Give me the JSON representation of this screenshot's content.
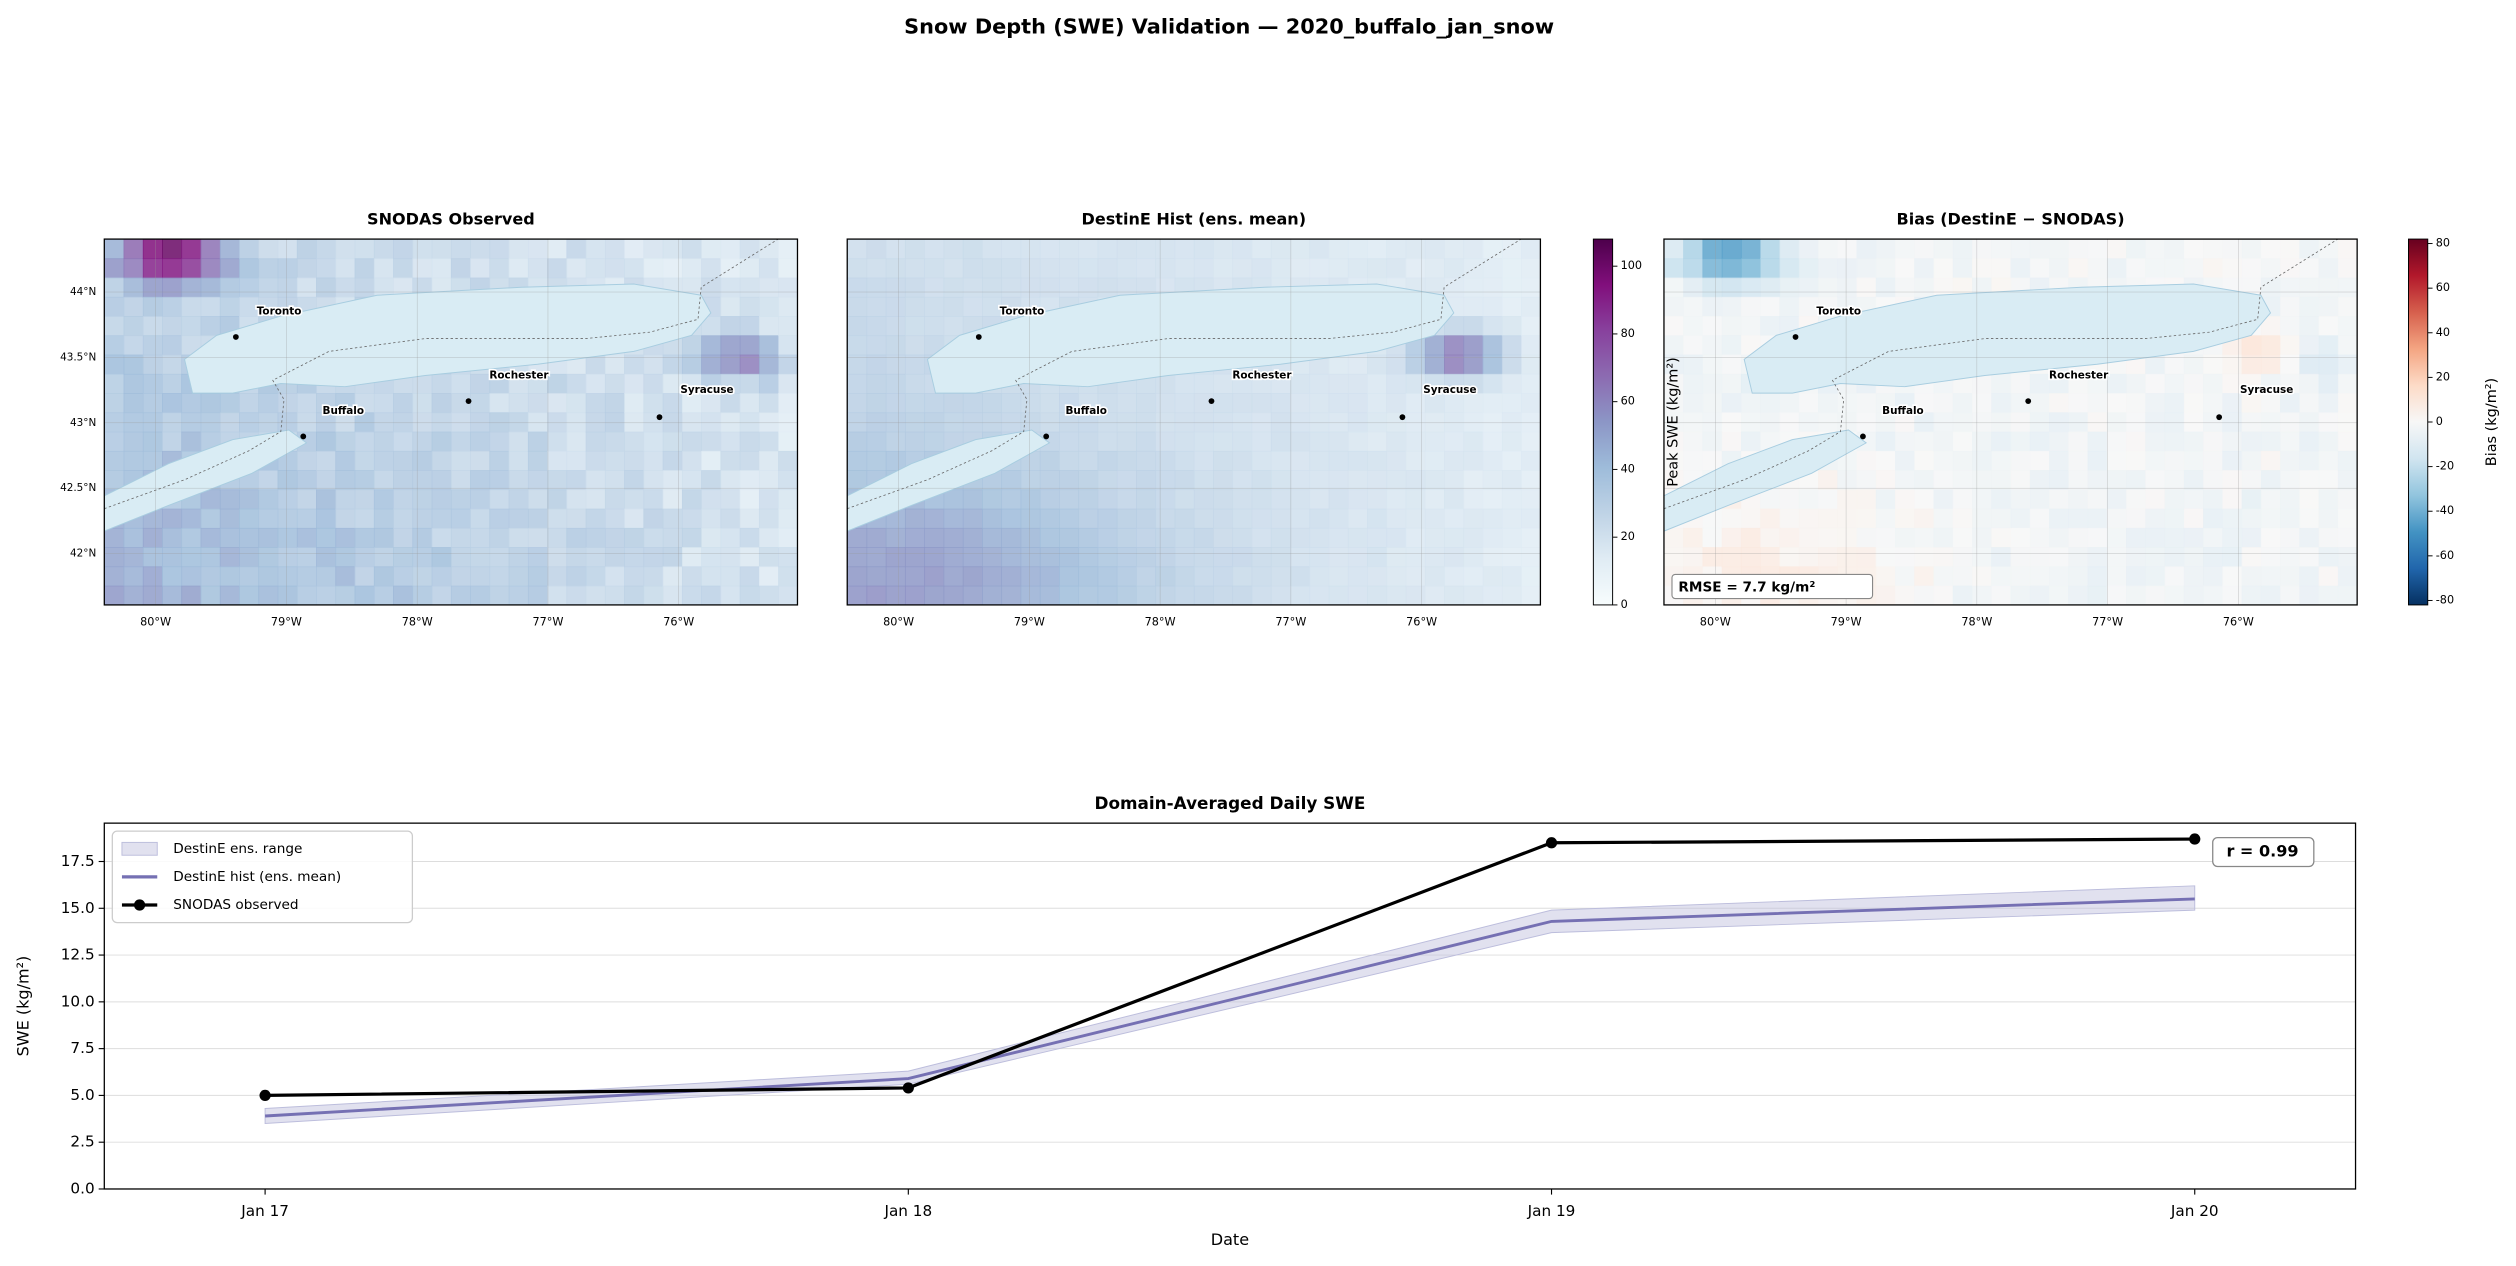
{
  "title": "Snow Depth (SWE) Validation — 2020_buffalo_jan_snow",
  "maps": [
    {
      "title": "SNODAS Observed",
      "cities": [
        "Toronto",
        "Rochester",
        "Buffalo",
        "Syracuse"
      ]
    },
    {
      "title": "DestinE Hist (ens. mean)",
      "cities": [
        "Toronto",
        "Rochester",
        "Buffalo",
        "Syracuse"
      ]
    },
    {
      "title": "Bias (DestinE − SNODAS)",
      "cities": [
        "Toronto",
        "Rochester",
        "Buffalo",
        "Syracuse"
      ],
      "annotation": "RMSE = 7.7 kg/m²"
    }
  ],
  "map_axes": {
    "lon_ticks": [
      "80°W",
      "79°W",
      "78°W",
      "77°W",
      "76°W"
    ],
    "lat_ticks": [
      "44°N",
      "43.5°N",
      "43°N",
      "42.5°N",
      "42°N"
    ]
  },
  "colorbars": [
    {
      "label": "Peak SWE (kg/m²)",
      "lim": [
        0,
        108
      ],
      "ticks": [
        0,
        20,
        40,
        60,
        80,
        100
      ]
    },
    {
      "label": "Bias (kg/m²)",
      "lim": [
        -82,
        82
      ],
      "ticks": [
        -80,
        -60,
        -40,
        -20,
        0,
        20,
        40,
        60,
        80
      ]
    }
  ],
  "chart_data": {
    "type": "line",
    "title": "Domain-Averaged Daily SWE",
    "xlabel": "Date",
    "ylabel": "SWE (kg/m²)",
    "categories": [
      "Jan 17",
      "Jan 18",
      "Jan 19",
      "Jan 20"
    ],
    "band": {
      "name": "DestinE ens. range",
      "color": "#bcbddc",
      "lower": [
        3.5,
        5.6,
        13.7,
        14.9
      ],
      "upper": [
        4.3,
        6.3,
        14.9,
        16.2
      ]
    },
    "series": [
      {
        "name": "DestinE hist (ens. mean)",
        "color": "#7570b3",
        "values": [
          3.9,
          5.9,
          14.3,
          15.5
        ]
      },
      {
        "name": "SNODAS observed",
        "color": "#000000",
        "values": [
          5.0,
          5.4,
          18.5,
          18.7
        ]
      }
    ],
    "ylim": [
      0,
      19.55
    ],
    "yticks": [
      {
        "value": 0,
        "label": "0.0"
      },
      2.5,
      {
        "value": 5,
        "label": "5.0"
      },
      7.5,
      {
        "value": 10,
        "label": "10.0"
      },
      12.5,
      {
        "value": 15,
        "label": "15.0"
      },
      17.5
    ],
    "annotation": "r = 0.99",
    "grid": true,
    "legend": "upper left"
  }
}
